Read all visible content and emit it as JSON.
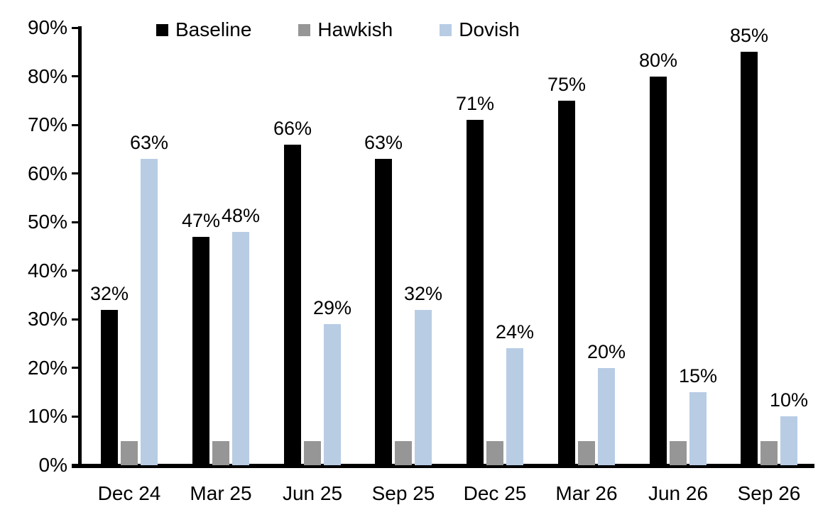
{
  "chart_data": {
    "type": "bar",
    "title": "",
    "xlabel": "",
    "ylabel": "",
    "categories": [
      "Dec 24",
      "Mar 25",
      "Jun 25",
      "Sep 25",
      "Dec 25",
      "Mar 26",
      "Jun 26",
      "Sep 26"
    ],
    "series": [
      {
        "name": "Baseline",
        "color": "#000000",
        "values": [
          32,
          47,
          66,
          63,
          71,
          75,
          80,
          85
        ],
        "data_labels": true
      },
      {
        "name": "Hawkish",
        "color": "#969696",
        "values": [
          5,
          5,
          5,
          5,
          5,
          5,
          5,
          5
        ],
        "data_labels": false
      },
      {
        "name": "Dovish",
        "color": "#B8CCE4",
        "values": [
          63,
          48,
          29,
          32,
          24,
          20,
          15,
          10
        ],
        "data_labels": true
      }
    ],
    "value_labels": [
      [
        "32%",
        "47%",
        "66%",
        "63%",
        "71%",
        "75%",
        "80%",
        "85%"
      ],
      [
        "",
        "",
        "",
        "",
        "",
        "",
        "",
        ""
      ],
      [
        "63%",
        "48%",
        "29%",
        "32%",
        "24%",
        "20%",
        "15%",
        "10%"
      ]
    ],
    "ylim": [
      0,
      90
    ],
    "ytick_step": 10,
    "ytick_labels": [
      "0%",
      "10%",
      "20%",
      "30%",
      "40%",
      "50%",
      "60%",
      "70%",
      "80%",
      "90%"
    ],
    "grid": false,
    "legend_position": "top",
    "axis_color": "#000000",
    "background_color": "#ffffff"
  }
}
